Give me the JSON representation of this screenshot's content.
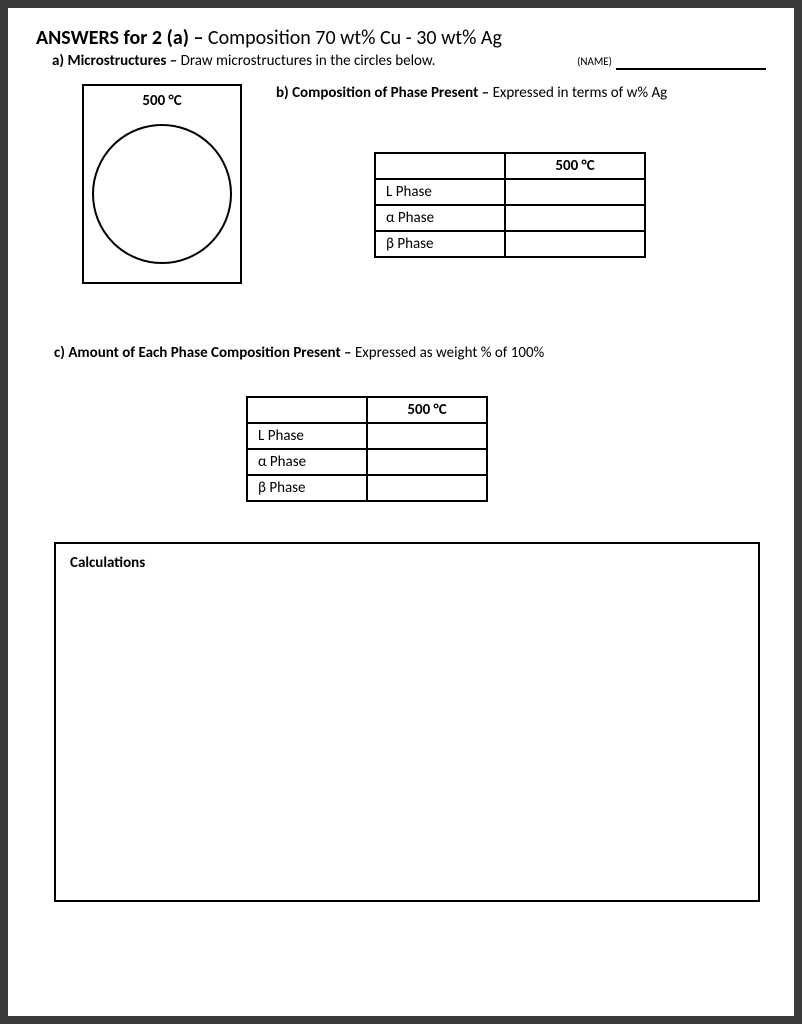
{
  "title": {
    "prefix_bold": "ANSWERS for 2 (a) –",
    "rest": " Composition 70 wt% Cu - 30 wt% Ag"
  },
  "section_a": {
    "label": "a) Microstructures –",
    "text": " Draw microstructures in the circles below.",
    "name_tag": "(NAME)"
  },
  "microstructure": {
    "temperature": "500 °C",
    "box_border_color": "#000000",
    "circle_border_color": "#000000"
  },
  "section_b": {
    "label": "b) Composition of Phase Present –",
    "text": " Expressed in terms of w% Ag",
    "table": {
      "header": "500 °C",
      "rows": [
        "L Phase",
        "α Phase",
        "β Phase"
      ],
      "values": [
        "",
        "",
        ""
      ]
    }
  },
  "section_c": {
    "label": "c) Amount of Each Phase Composition Present –",
    "text": " Expressed as weight % of 100%",
    "table": {
      "header": "500 °C",
      "rows": [
        "L Phase",
        "α Phase",
        "β Phase"
      ],
      "values": [
        "",
        "",
        ""
      ]
    }
  },
  "calculations": {
    "title": "Calculations"
  },
  "colors": {
    "page_bg": "#ffffff",
    "outer_bg": "#3a3a3a",
    "text": "#000000",
    "border": "#000000"
  }
}
